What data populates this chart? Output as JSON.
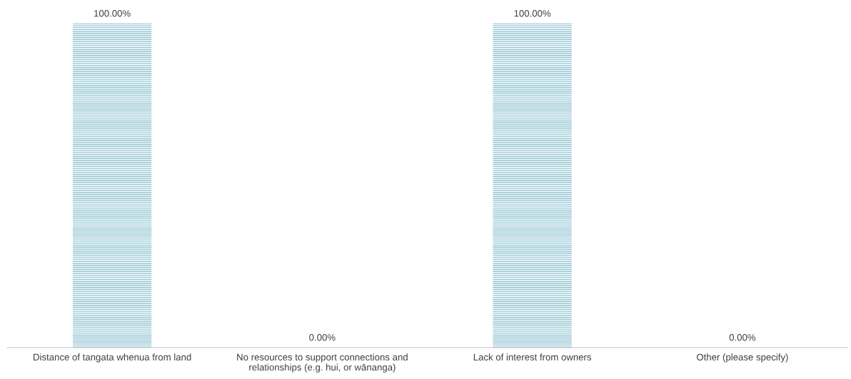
{
  "chart_data": {
    "type": "bar",
    "categories": [
      "Distance of tangata whenua from land",
      "No resources to support connections and relationships (e.g. hui, or wānanga)",
      "Lack of interest from owners",
      "Other (please specify)"
    ],
    "values": [
      100,
      0,
      100,
      0
    ],
    "value_labels": [
      "100.00%",
      "0.00%",
      "100.00%",
      "0.00%"
    ],
    "color": "#8fc3d1",
    "ylim": [
      0,
      100
    ],
    "grid": false,
    "legend": false
  }
}
